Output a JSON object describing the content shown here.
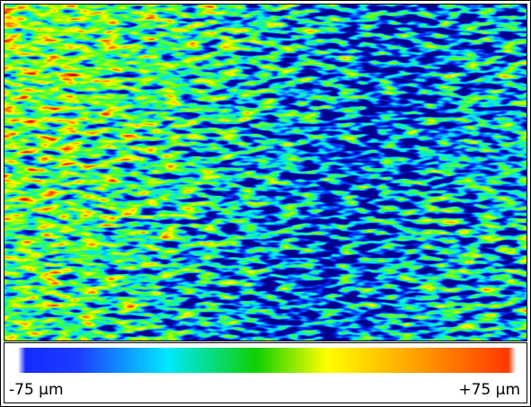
{
  "colorbar": {
    "min_label": "-75 µm",
    "max_label": "+75 µm"
  }
}
